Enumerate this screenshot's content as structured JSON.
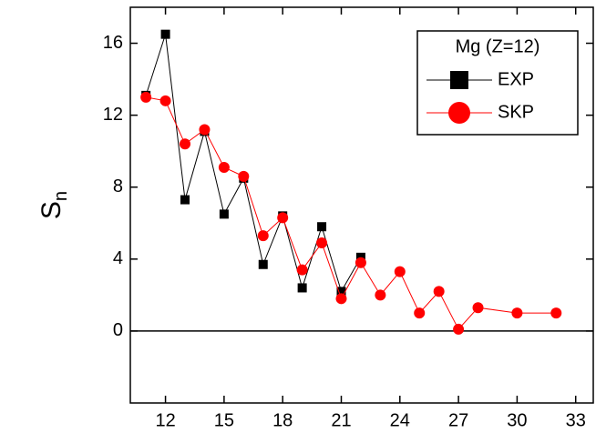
{
  "chart_data": {
    "type": "line",
    "ylabel": "S",
    "ylabel_sub": "n",
    "legend_title": "Mg (Z=12)",
    "series": [
      {
        "name": "EXP",
        "color": "#000000",
        "marker": "square",
        "x": [
          11,
          12,
          13,
          14,
          15,
          16,
          17,
          18,
          19,
          20,
          21,
          22
        ],
        "values": [
          13.1,
          16.5,
          7.3,
          11.1,
          6.5,
          8.5,
          3.7,
          6.4,
          2.4,
          5.8,
          2.2,
          4.1
        ]
      },
      {
        "name": "SKP",
        "color": "#ff0000",
        "marker": "circle",
        "x": [
          11,
          12,
          13,
          14,
          15,
          16,
          17,
          18,
          19,
          20,
          21,
          22,
          23,
          24,
          25,
          26,
          27,
          28,
          30,
          32
        ],
        "values": [
          13.0,
          12.8,
          10.4,
          11.2,
          9.1,
          8.6,
          5.3,
          6.3,
          3.4,
          4.9,
          1.8,
          3.8,
          2.0,
          3.3,
          1.0,
          2.2,
          0.1,
          1.3,
          1.0,
          1.0
        ]
      }
    ],
    "xlim": [
      10.2,
      33.9
    ],
    "xticks": [
      12,
      15,
      18,
      21,
      24,
      27,
      30,
      33
    ],
    "ylim": [
      -4,
      18
    ],
    "yticks": [
      0,
      4,
      8,
      12,
      16
    ],
    "hline": 0
  }
}
